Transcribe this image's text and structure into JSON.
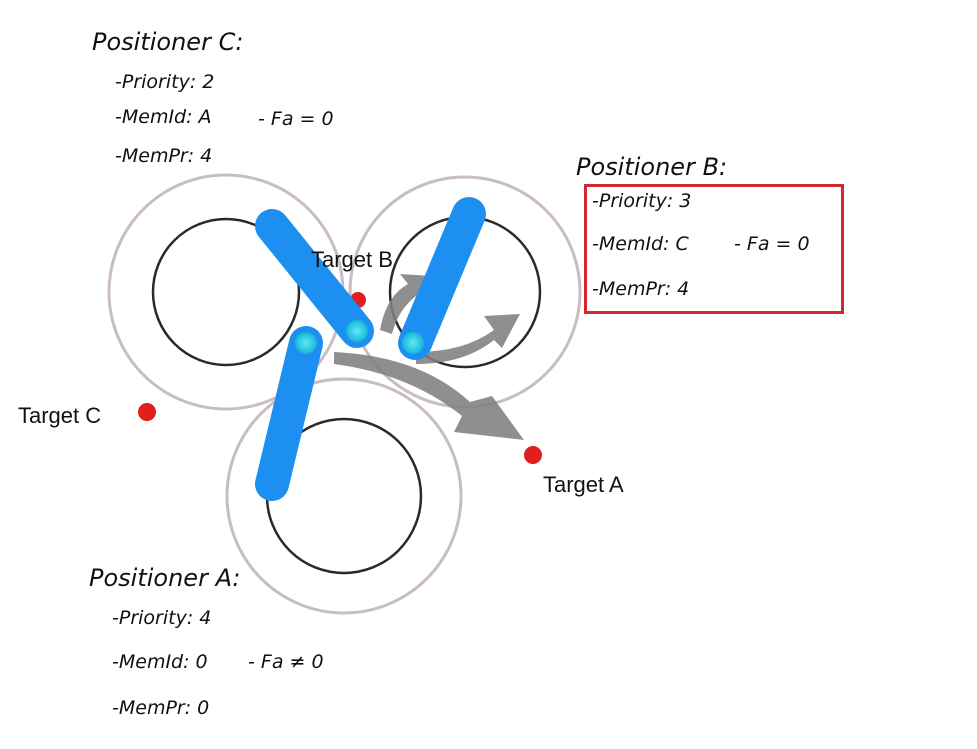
{
  "positioners": {
    "c": {
      "heading": "Positioner C:",
      "priority": "-Priority: 2",
      "memid": "-MemId: A",
      "fa": "- Fa = 0",
      "mempr": "-MemPr: 4"
    },
    "b": {
      "heading": "Positioner B:",
      "priority": "-Priority: 3",
      "memid": "-MemId: C",
      "fa": "- Fa = 0",
      "mempr": "-MemPr: 4"
    },
    "a": {
      "heading": "Positioner A:",
      "priority": "-Priority: 4",
      "memid": "-MemId: 0",
      "fa": "- Fa ≠ 0",
      "mempr": "-MemPr: 0"
    }
  },
  "targets": {
    "a": "Target A",
    "b": "Target B",
    "c": "Target C"
  },
  "colors": {
    "arm": "#1c8ff0",
    "joint": "#31d3ea",
    "target": "#e01f1f",
    "highlight": "#d6262e",
    "arrow": "#808080",
    "outer_circle": "#c9bcc6",
    "inner_circle": "#2a2a2a"
  }
}
